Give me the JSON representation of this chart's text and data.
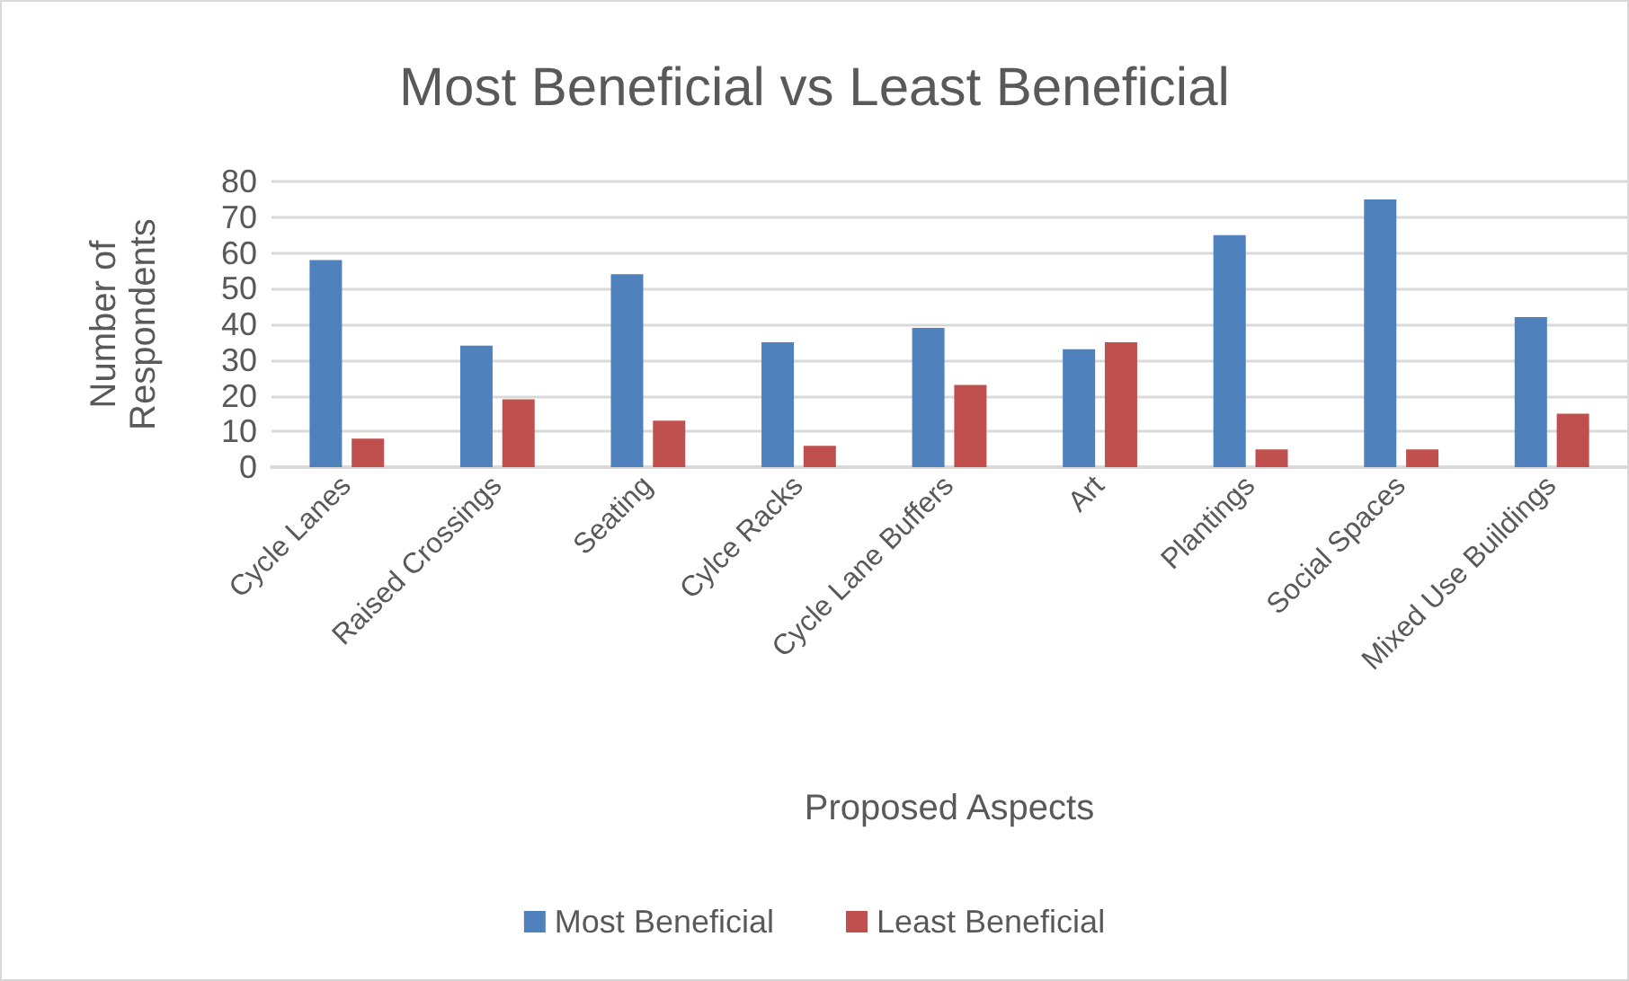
{
  "chart_data": {
    "type": "bar",
    "title": "Most Beneficial vs Least Beneficial",
    "xlabel": "Proposed Aspects",
    "ylabel": "Number of\nRespondents",
    "categories": [
      "Cycle Lanes",
      "Raised Crossings",
      "Seating",
      "Cylce Racks",
      "Cycle Lane Buffers",
      "Art",
      "Plantings",
      "Social Spaces",
      "Mixed Use Buildings"
    ],
    "series": [
      {
        "name": "Most Beneficial",
        "color": "#4f81bd",
        "values": [
          58,
          34,
          54,
          35,
          39,
          33,
          65,
          75,
          42
        ]
      },
      {
        "name": "Least Beneficial",
        "color": "#c0504d",
        "values": [
          8,
          19,
          13,
          6,
          23,
          35,
          5,
          5,
          15
        ]
      }
    ],
    "ylim": [
      0,
      80
    ],
    "yticks": [
      0,
      10,
      20,
      30,
      40,
      50,
      60,
      70,
      80
    ],
    "grid": "y",
    "legend": "bottom"
  }
}
